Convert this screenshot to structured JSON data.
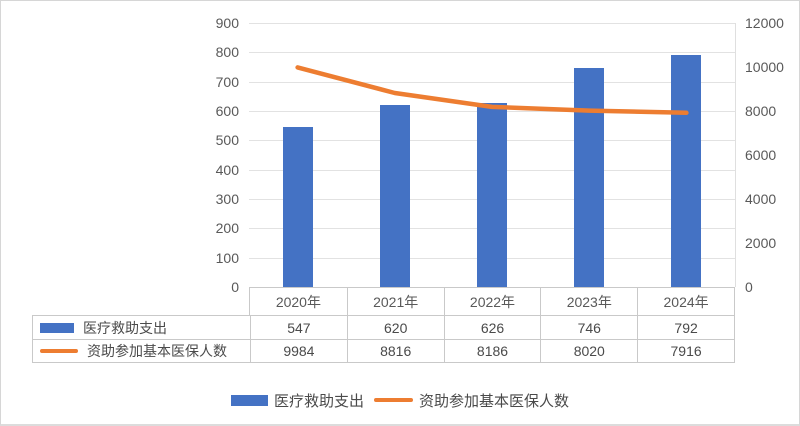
{
  "chart_data": {
    "type": "bar",
    "subtype": "combo-bar-line",
    "title": "",
    "categories": [
      "2020年",
      "2021年",
      "2022年",
      "2023年",
      "2024年"
    ],
    "series": [
      {
        "name": "医疗救助支出",
        "type": "bar",
        "axis": "left",
        "color": "#4472C4",
        "values": [
          547,
          620,
          626,
          746,
          792
        ]
      },
      {
        "name": "资助参加基本医保人数",
        "type": "line",
        "axis": "right",
        "color": "#ED7D31",
        "values": [
          9984,
          8816,
          8186,
          8020,
          7916
        ]
      }
    ],
    "left_axis": {
      "min": 0,
      "max": 900,
      "step": 100,
      "tick_labels": [
        "0",
        "100",
        "200",
        "300",
        "400",
        "500",
        "600",
        "700",
        "800",
        "900"
      ]
    },
    "right_axis": {
      "min": 0,
      "max": 12000,
      "step": 2000,
      "tick_labels": [
        "0",
        "2000",
        "4000",
        "6000",
        "8000",
        "10000",
        "12000"
      ]
    },
    "grid": true,
    "data_table_with_legend_keys": true,
    "legend": {
      "position": "bottom",
      "items": [
        {
          "label": "医疗救助支出",
          "swatch": "bar",
          "color": "#4472C4"
        },
        {
          "label": "资助参加基本医保人数",
          "swatch": "line",
          "color": "#ED7D31"
        }
      ]
    }
  },
  "colors": {
    "bar": "#4472C4",
    "line": "#ED7D31",
    "axis_text": "#595959",
    "table_text": "#4A4A4A",
    "gridline": "#E2E2E2",
    "table_border": "#C9C9C9",
    "frame_border": "#D6D6D6",
    "background": "#FFFFFF"
  }
}
